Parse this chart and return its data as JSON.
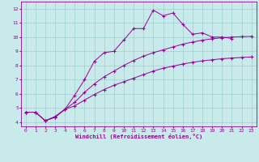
{
  "background_color": "#c8eaea",
  "line_color": "#990099",
  "grid_color": "#9ecece",
  "xlabel": "Windchill (Refroidissement éolien,°C)",
  "xlim": [
    -0.5,
    23.5
  ],
  "ylim": [
    3.7,
    12.5
  ],
  "xticks": [
    0,
    1,
    2,
    3,
    4,
    5,
    6,
    7,
    8,
    9,
    10,
    11,
    12,
    13,
    14,
    15,
    16,
    17,
    18,
    19,
    20,
    21,
    22,
    23
  ],
  "yticks": [
    4,
    5,
    6,
    7,
    8,
    9,
    10,
    11,
    12
  ],
  "line1_x": [
    0,
    1,
    2,
    3,
    4,
    5,
    6,
    7,
    8,
    9,
    10,
    11,
    12,
    13,
    14,
    15,
    16,
    17,
    18,
    19,
    20,
    21
  ],
  "line1_y": [
    4.7,
    4.7,
    4.1,
    4.4,
    4.9,
    5.9,
    7.0,
    8.3,
    8.9,
    9.0,
    9.8,
    10.6,
    10.6,
    11.9,
    11.5,
    11.7,
    10.9,
    10.2,
    10.3,
    10.0,
    10.0,
    9.9
  ],
  "line2_x": [
    0,
    1,
    2,
    3,
    4,
    5,
    6,
    7,
    8,
    9,
    10,
    11,
    12,
    13,
    14,
    15,
    16,
    17,
    18,
    19,
    20,
    21,
    22,
    23
  ],
  "line2_y": [
    4.7,
    4.7,
    4.1,
    4.35,
    4.9,
    5.15,
    5.55,
    5.95,
    6.3,
    6.6,
    6.85,
    7.1,
    7.35,
    7.6,
    7.8,
    7.95,
    8.1,
    8.22,
    8.32,
    8.4,
    8.47,
    8.52,
    8.56,
    8.6
  ],
  "line3_x": [
    0,
    1,
    2,
    3,
    4,
    5,
    6,
    7,
    8,
    9,
    10,
    11,
    12,
    13,
    14,
    15,
    16,
    17,
    18,
    19,
    20,
    21,
    22,
    23
  ],
  "line3_y": [
    4.7,
    4.7,
    4.1,
    4.35,
    4.9,
    5.4,
    6.1,
    6.7,
    7.2,
    7.6,
    8.0,
    8.35,
    8.65,
    8.9,
    9.1,
    9.3,
    9.5,
    9.65,
    9.78,
    9.88,
    9.95,
    10.0,
    10.03,
    10.05
  ],
  "figwidth": 3.2,
  "figheight": 2.0,
  "dpi": 100
}
